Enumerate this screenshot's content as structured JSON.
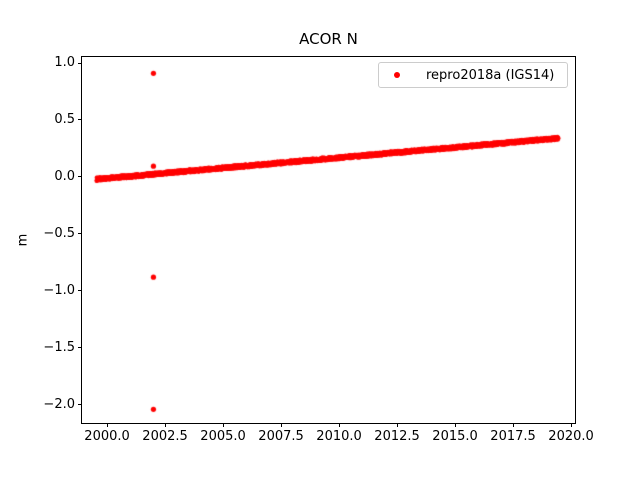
{
  "chart_data": {
    "type": "scatter",
    "title": "ACOR N",
    "xlabel": "",
    "ylabel": "m",
    "grid": false,
    "xlim": [
      1998.92,
      2020.17
    ],
    "ylim": [
      -2.16,
      1.053
    ],
    "xticks": {
      "values": [
        2000.0,
        2002.5,
        2005.0,
        2007.5,
        2010.0,
        2012.5,
        2015.0,
        2017.5,
        2020.0
      ],
      "labels": [
        "2000.0",
        "2002.5",
        "2005.0",
        "2007.5",
        "2010.0",
        "2012.5",
        "2015.0",
        "2017.5",
        "2020.0"
      ]
    },
    "yticks": {
      "values": [
        1.0,
        0.5,
        0.0,
        -0.5,
        -1.0,
        -1.5,
        -2.0
      ],
      "labels": [
        "1.0",
        "0.5",
        "0.0",
        "−0.5",
        "−1.0",
        "−1.5",
        "−2.0"
      ]
    },
    "legend": {
      "position": "upper right",
      "entries": [
        {
          "label": "repro2018a (IGS14)",
          "marker": "dot",
          "color": "#ff0000"
        }
      ]
    },
    "series": [
      {
        "name": "repro2018a (IGS14)",
        "color": "#ff0000",
        "marker": "dot",
        "marker_radius_px": 2.2,
        "trend": {
          "x_start": 1999.55,
          "y_start": -0.02,
          "x_end": 2019.45,
          "y_end": 0.34,
          "slope_m_per_yr": 0.018,
          "shape": "dense linear scatter band"
        },
        "scatter_band_halfwidth": 0.013,
        "n_points": 2400,
        "outliers": [
          {
            "x": 2002.0,
            "y": 0.91
          },
          {
            "x": 2002.0,
            "y": 0.095
          },
          {
            "x": 2002.0,
            "y": -0.88
          },
          {
            "x": 2002.0,
            "y": -2.04
          }
        ]
      }
    ]
  }
}
